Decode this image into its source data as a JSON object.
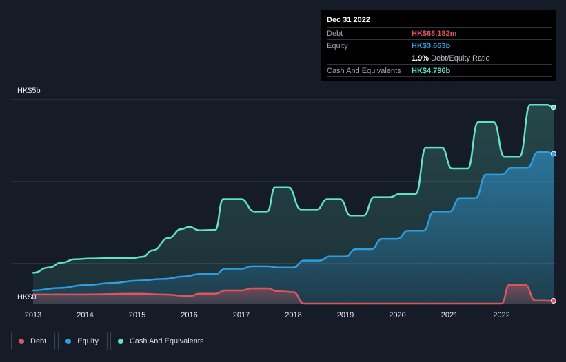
{
  "chart_data": {
    "type": "area",
    "title": "",
    "xlabel": "",
    "ylabel": "",
    "currency": "HK$",
    "y_unit": "billions",
    "ylim": [
      0,
      5
    ],
    "y_tick_labels": [
      {
        "value": 0,
        "label": "HK$0"
      },
      {
        "value": 5,
        "label": "HK$5b"
      }
    ],
    "x_ticks": [
      "2013",
      "2014",
      "2015",
      "2016",
      "2017",
      "2018",
      "2019",
      "2020",
      "2021",
      "2022"
    ],
    "xlim": [
      2013.0,
      2023.0
    ],
    "series": [
      {
        "name": "Cash And Equivalents",
        "color": "#5fe3c7",
        "points": [
          [
            2013.0,
            0.75
          ],
          [
            2013.3,
            0.88
          ],
          [
            2013.55,
            1.0
          ],
          [
            2013.8,
            1.08
          ],
          [
            2014.1,
            1.1
          ],
          [
            2014.5,
            1.11
          ],
          [
            2014.9,
            1.11
          ],
          [
            2015.1,
            1.14
          ],
          [
            2015.3,
            1.3
          ],
          [
            2015.6,
            1.6
          ],
          [
            2015.85,
            1.82
          ],
          [
            2016.0,
            1.87
          ],
          [
            2016.2,
            1.79
          ],
          [
            2016.5,
            1.8
          ],
          [
            2016.65,
            2.55
          ],
          [
            2016.75,
            2.55
          ],
          [
            2017.0,
            2.55
          ],
          [
            2017.25,
            2.25
          ],
          [
            2017.5,
            2.25
          ],
          [
            2017.65,
            2.85
          ],
          [
            2017.9,
            2.85
          ],
          [
            2018.15,
            2.3
          ],
          [
            2018.45,
            2.3
          ],
          [
            2018.65,
            2.55
          ],
          [
            2018.9,
            2.55
          ],
          [
            2019.1,
            2.15
          ],
          [
            2019.35,
            2.15
          ],
          [
            2019.55,
            2.6
          ],
          [
            2019.85,
            2.6
          ],
          [
            2020.05,
            2.68
          ],
          [
            2020.35,
            2.68
          ],
          [
            2020.55,
            3.82
          ],
          [
            2020.85,
            3.82
          ],
          [
            2021.05,
            3.3
          ],
          [
            2021.35,
            3.3
          ],
          [
            2021.55,
            4.44
          ],
          [
            2021.85,
            4.44
          ],
          [
            2022.05,
            3.6
          ],
          [
            2022.35,
            3.6
          ],
          [
            2022.55,
            4.86
          ],
          [
            2022.88,
            4.86
          ],
          [
            2022.9997,
            4.796
          ]
        ]
      },
      {
        "name": "Equity",
        "color": "#2f9ee0",
        "points": [
          [
            2013.0,
            0.32
          ],
          [
            2013.5,
            0.38
          ],
          [
            2014.0,
            0.45
          ],
          [
            2014.5,
            0.5
          ],
          [
            2015.0,
            0.56
          ],
          [
            2015.5,
            0.6
          ],
          [
            2015.9,
            0.66
          ],
          [
            2016.2,
            0.72
          ],
          [
            2016.5,
            0.72
          ],
          [
            2016.7,
            0.85
          ],
          [
            2017.0,
            0.85
          ],
          [
            2017.2,
            0.91
          ],
          [
            2017.5,
            0.91
          ],
          [
            2017.7,
            0.88
          ],
          [
            2018.0,
            0.88
          ],
          [
            2018.2,
            1.05
          ],
          [
            2018.5,
            1.05
          ],
          [
            2018.7,
            1.15
          ],
          [
            2019.0,
            1.15
          ],
          [
            2019.2,
            1.33
          ],
          [
            2019.5,
            1.33
          ],
          [
            2019.7,
            1.58
          ],
          [
            2020.0,
            1.58
          ],
          [
            2020.2,
            1.78
          ],
          [
            2020.5,
            1.78
          ],
          [
            2020.7,
            2.25
          ],
          [
            2021.0,
            2.25
          ],
          [
            2021.2,
            2.58
          ],
          [
            2021.5,
            2.58
          ],
          [
            2021.7,
            3.15
          ],
          [
            2022.0,
            3.15
          ],
          [
            2022.2,
            3.33
          ],
          [
            2022.5,
            3.33
          ],
          [
            2022.7,
            3.7
          ],
          [
            2022.88,
            3.7
          ],
          [
            2022.9997,
            3.663
          ]
        ]
      },
      {
        "name": "Debt",
        "color": "#e0545d",
        "points": [
          [
            2013.0,
            0.22
          ],
          [
            2014.0,
            0.22
          ],
          [
            2015.0,
            0.24
          ],
          [
            2015.5,
            0.22
          ],
          [
            2016.0,
            0.18
          ],
          [
            2016.2,
            0.24
          ],
          [
            2016.5,
            0.24
          ],
          [
            2016.7,
            0.32
          ],
          [
            2017.0,
            0.32
          ],
          [
            2017.2,
            0.37
          ],
          [
            2017.5,
            0.37
          ],
          [
            2017.7,
            0.3
          ],
          [
            2018.0,
            0.28
          ],
          [
            2018.2,
            0.0
          ],
          [
            2019.0,
            0.0
          ],
          [
            2020.0,
            0.0
          ],
          [
            2021.0,
            0.0
          ],
          [
            2022.0,
            0.0
          ],
          [
            2022.15,
            0.46
          ],
          [
            2022.45,
            0.46
          ],
          [
            2022.65,
            0.07
          ],
          [
            2022.9997,
            0.068
          ]
        ]
      }
    ]
  },
  "tooltip": {
    "date": "Dec 31 2022",
    "debt_label": "Debt",
    "debt_value": "HK$68.182m",
    "equity_label": "Equity",
    "equity_value": "HK$3.663b",
    "ratio_value": "1.9%",
    "ratio_label": "Debt/Equity Ratio",
    "cash_label": "Cash And Equivalents",
    "cash_value": "HK$4.796b"
  },
  "legend": [
    {
      "label": "Debt",
      "color": "#e0545d"
    },
    {
      "label": "Equity",
      "color": "#2f9ee0"
    },
    {
      "label": "Cash And Equivalents",
      "color": "#5fe3c7"
    }
  ]
}
